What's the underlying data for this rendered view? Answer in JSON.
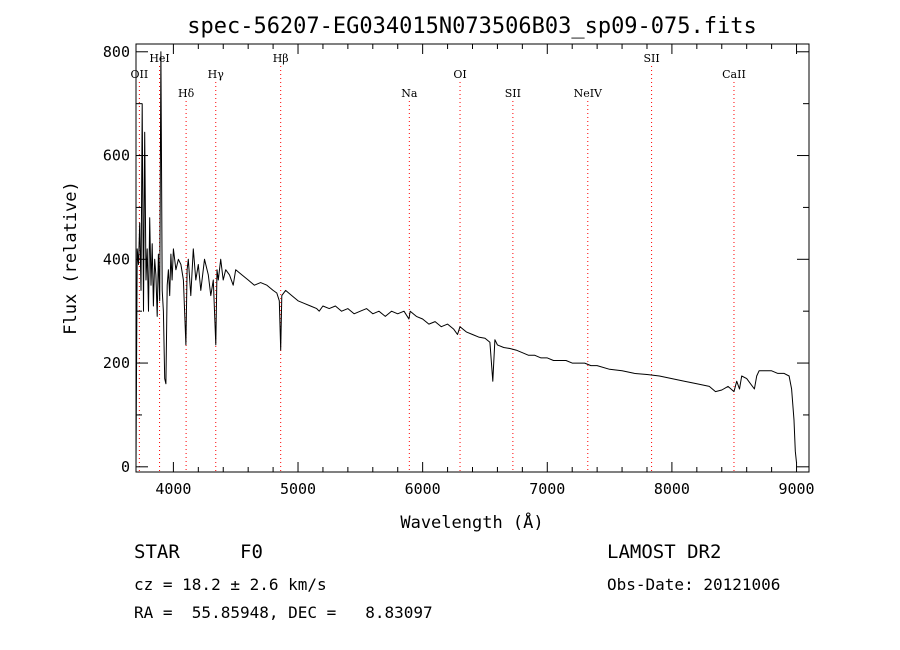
{
  "chart_data": {
    "type": "line",
    "title": "spec-56207-EG034015N073506B03_sp09-075.fits",
    "xlabel": "Wavelength (Å)",
    "ylabel": "Flux (relative)",
    "xlim": [
      3700,
      9100
    ],
    "ylim": [
      -10,
      815
    ],
    "xticks": [
      4000,
      5000,
      6000,
      7000,
      8000,
      9000
    ],
    "yticks": [
      0,
      200,
      400,
      600,
      800
    ],
    "grid": false,
    "series": [
      {
        "name": "flux",
        "x": [
          3700,
          3710,
          3720,
          3730,
          3740,
          3750,
          3760,
          3770,
          3780,
          3790,
          3800,
          3810,
          3820,
          3830,
          3840,
          3850,
          3860,
          3870,
          3880,
          3890,
          3900,
          3910,
          3920,
          3930,
          3940,
          3950,
          3960,
          3970,
          3980,
          3990,
          4000,
          4020,
          4040,
          4060,
          4080,
          4100,
          4110,
          4120,
          4140,
          4160,
          4180,
          4200,
          4220,
          4250,
          4280,
          4300,
          4320,
          4340,
          4350,
          4360,
          4380,
          4400,
          4420,
          4450,
          4480,
          4500,
          4550,
          4600,
          4650,
          4700,
          4750,
          4800,
          4830,
          4850,
          4861,
          4870,
          4900,
          4950,
          5000,
          5050,
          5100,
          5150,
          5170,
          5200,
          5250,
          5300,
          5350,
          5400,
          5450,
          5500,
          5550,
          5600,
          5650,
          5700,
          5750,
          5800,
          5850,
          5890,
          5900,
          5950,
          6000,
          6050,
          6100,
          6150,
          6200,
          6250,
          6280,
          6300,
          6350,
          6400,
          6450,
          6500,
          6540,
          6563,
          6580,
          6600,
          6650,
          6700,
          6750,
          6800,
          6850,
          6900,
          6950,
          7000,
          7050,
          7100,
          7150,
          7200,
          7250,
          7300,
          7350,
          7400,
          7500,
          7600,
          7700,
          7800,
          7900,
          8000,
          8100,
          8200,
          8300,
          8350,
          8400,
          8450,
          8498,
          8520,
          8542,
          8560,
          8600,
          8662,
          8680,
          8700,
          8750,
          8800,
          8850,
          8900,
          8940,
          8960,
          8980,
          8990,
          9000
        ],
        "y": [
          0,
          420,
          390,
          470,
          340,
          700,
          300,
          645,
          360,
          420,
          300,
          480,
          350,
          430,
          310,
          400,
          370,
          290,
          410,
          320,
          800,
          340,
          300,
          170,
          160,
          350,
          380,
          330,
          410,
          360,
          420,
          380,
          400,
          390,
          360,
          235,
          380,
          400,
          330,
          420,
          360,
          390,
          340,
          400,
          370,
          330,
          360,
          235,
          380,
          360,
          400,
          360,
          380,
          370,
          350,
          380,
          370,
          360,
          350,
          355,
          350,
          340,
          335,
          320,
          225,
          330,
          340,
          330,
          320,
          315,
          310,
          305,
          300,
          310,
          305,
          310,
          300,
          305,
          295,
          300,
          305,
          295,
          300,
          290,
          300,
          295,
          300,
          285,
          300,
          290,
          285,
          275,
          280,
          270,
          275,
          265,
          255,
          270,
          260,
          255,
          250,
          248,
          240,
          165,
          245,
          235,
          230,
          228,
          225,
          220,
          215,
          215,
          210,
          210,
          205,
          205,
          205,
          200,
          200,
          200,
          195,
          195,
          188,
          185,
          180,
          178,
          175,
          170,
          165,
          160,
          155,
          145,
          148,
          155,
          145,
          165,
          150,
          175,
          170,
          150,
          175,
          185,
          185,
          185,
          180,
          180,
          175,
          150,
          90,
          30,
          8
        ]
      }
    ],
    "line_markers": [
      {
        "label": "OII",
        "x": 3727,
        "row": 2
      },
      {
        "label": "HeI",
        "x": 3889,
        "row": 1
      },
      {
        "label": "Hδ",
        "x": 4102,
        "row": 3
      },
      {
        "label": "Hγ",
        "x": 4340,
        "row": 2
      },
      {
        "label": "Hβ",
        "x": 4861,
        "row": 1
      },
      {
        "label": "Na",
        "x": 5893,
        "row": 3
      },
      {
        "label": "OI",
        "x": 6300,
        "row": 2
      },
      {
        "label": "SII",
        "x": 6724,
        "row": 3
      },
      {
        "label": "NeIV",
        "x": 7325,
        "row": 3
      },
      {
        "label": "SII",
        "x": 7837,
        "row": 1
      },
      {
        "label": "CaII",
        "x": 8498,
        "row": 2
      }
    ],
    "colors": {
      "line": "#000000",
      "marker": "#ff0000",
      "axes": "#000000"
    }
  },
  "info": {
    "object_class": "STAR",
    "subclass": "F0",
    "survey": "LAMOST DR2",
    "cz": "cz = 18.2 ± 2.6 km/s",
    "obs_date": "Obs-Date: 20121006",
    "coords": "RA =  55.85948, DEC =   8.83097"
  }
}
